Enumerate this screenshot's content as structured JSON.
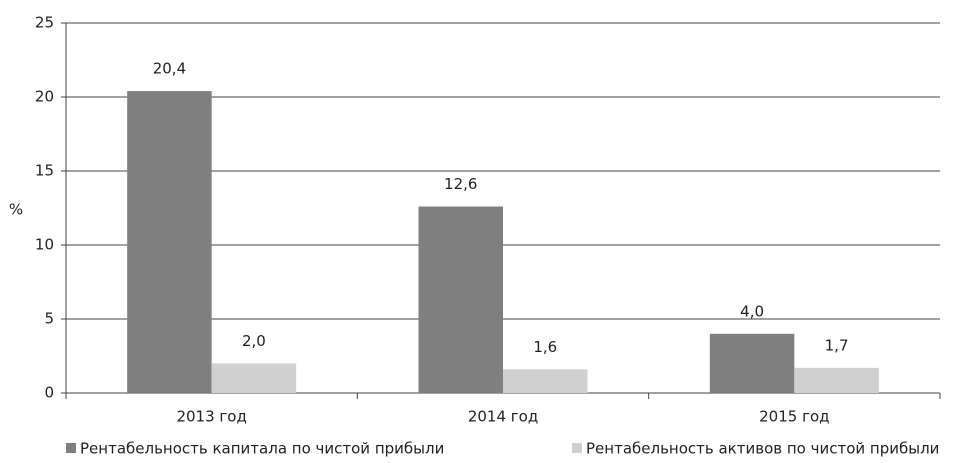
{
  "chart_data": {
    "type": "bar",
    "categories": [
      "2013 год",
      "2014 год",
      "2015 год"
    ],
    "series": [
      {
        "name": "Рентабельность капитала по чистой прибыли",
        "color": "#7f7f7f",
        "values": [
          20.4,
          12.6,
          4.0
        ],
        "value_labels": [
          "20,4",
          "12,6",
          "4,0"
        ]
      },
      {
        "name": "Рентабельность активов по чистой прибыли",
        "color": "#d0d0d0",
        "values": [
          2.0,
          1.6,
          1.7
        ],
        "value_labels": [
          "2,0",
          "1,6",
          "1,7"
        ]
      }
    ],
    "ylabel": "%",
    "ylim": [
      0,
      25
    ],
    "yticks": [
      0,
      5,
      10,
      15,
      20,
      25
    ],
    "grid": true,
    "legend": "bottom"
  }
}
